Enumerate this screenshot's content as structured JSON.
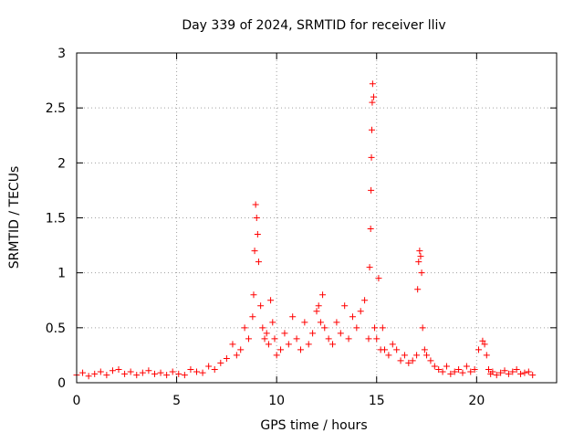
{
  "chart_data": {
    "type": "scatter",
    "title": "Day 339 of 2024, SRMTID for receiver lliv",
    "xlabel": "GPS time / hours",
    "ylabel": "SRMTID / TECUs",
    "xlim": [
      0,
      24
    ],
    "ylim": [
      0,
      3
    ],
    "xticks": [
      0,
      5,
      10,
      15,
      20
    ],
    "yticks": [
      0,
      0.5,
      1,
      1.5,
      2,
      2.5,
      3
    ],
    "xtick_labels": [
      "0",
      "5",
      "10",
      "15",
      "20"
    ],
    "ytick_labels": [
      "0",
      "0.5",
      "1",
      "1.5",
      "2",
      "2.5",
      "3"
    ],
    "grid": true,
    "marker": "plus",
    "series": [
      {
        "name": "SRMTID",
        "color": "#ff0000",
        "x": [
          0.0,
          0.3,
          0.6,
          0.9,
          1.2,
          1.5,
          1.8,
          2.1,
          2.4,
          2.7,
          3.0,
          3.3,
          3.6,
          3.9,
          4.2,
          4.5,
          4.8,
          5.1,
          5.4,
          5.7,
          6.0,
          6.3,
          6.6,
          6.9,
          7.2,
          7.5,
          7.8,
          8.0,
          8.2,
          8.4,
          8.6,
          8.8,
          8.85,
          8.9,
          8.95,
          9.0,
          9.05,
          9.1,
          9.2,
          9.3,
          9.4,
          9.5,
          9.6,
          9.7,
          9.8,
          9.9,
          10.0,
          10.2,
          10.4,
          10.6,
          10.8,
          11.0,
          11.2,
          11.4,
          11.6,
          11.8,
          12.0,
          12.1,
          12.2,
          12.3,
          12.4,
          12.6,
          12.8,
          13.0,
          13.2,
          13.4,
          13.6,
          13.8,
          14.0,
          14.2,
          14.4,
          14.6,
          14.65,
          14.7,
          14.72,
          14.74,
          14.76,
          14.78,
          14.8,
          14.85,
          14.9,
          15.0,
          15.1,
          15.2,
          15.3,
          15.4,
          15.6,
          15.8,
          16.0,
          16.2,
          16.4,
          16.6,
          16.8,
          17.0,
          17.05,
          17.1,
          17.15,
          17.2,
          17.25,
          17.3,
          17.4,
          17.5,
          17.7,
          17.9,
          18.1,
          18.3,
          18.5,
          18.7,
          18.9,
          19.1,
          19.3,
          19.5,
          19.7,
          19.9,
          20.1,
          20.3,
          20.4,
          20.5,
          20.6,
          20.7,
          20.8,
          21.0,
          21.2,
          21.4,
          21.6,
          21.8,
          22.0,
          22.2,
          22.4,
          22.6,
          22.8
        ],
        "y": [
          0.07,
          0.09,
          0.06,
          0.08,
          0.1,
          0.07,
          0.11,
          0.12,
          0.08,
          0.1,
          0.07,
          0.09,
          0.11,
          0.08,
          0.09,
          0.07,
          0.1,
          0.08,
          0.07,
          0.12,
          0.1,
          0.09,
          0.15,
          0.12,
          0.18,
          0.22,
          0.35,
          0.25,
          0.3,
          0.5,
          0.4,
          0.6,
          0.8,
          1.2,
          1.62,
          1.5,
          1.35,
          1.1,
          0.7,
          0.5,
          0.4,
          0.45,
          0.35,
          0.75,
          0.55,
          0.4,
          0.25,
          0.3,
          0.45,
          0.35,
          0.6,
          0.4,
          0.3,
          0.55,
          0.35,
          0.45,
          0.65,
          0.7,
          0.55,
          0.8,
          0.5,
          0.4,
          0.35,
          0.55,
          0.45,
          0.7,
          0.4,
          0.6,
          0.5,
          0.65,
          0.75,
          0.4,
          1.05,
          1.4,
          1.75,
          2.05,
          2.3,
          2.55,
          2.72,
          2.6,
          0.5,
          0.4,
          0.95,
          0.3,
          0.5,
          0.3,
          0.25,
          0.35,
          0.3,
          0.2,
          0.25,
          0.18,
          0.2,
          0.25,
          0.85,
          1.1,
          1.2,
          1.15,
          1.0,
          0.5,
          0.3,
          0.25,
          0.2,
          0.15,
          0.12,
          0.1,
          0.15,
          0.08,
          0.1,
          0.12,
          0.09,
          0.15,
          0.1,
          0.12,
          0.3,
          0.38,
          0.35,
          0.25,
          0.12,
          0.08,
          0.1,
          0.07,
          0.09,
          0.11,
          0.08,
          0.1,
          0.12,
          0.08,
          0.09,
          0.1,
          0.07
        ]
      }
    ]
  }
}
